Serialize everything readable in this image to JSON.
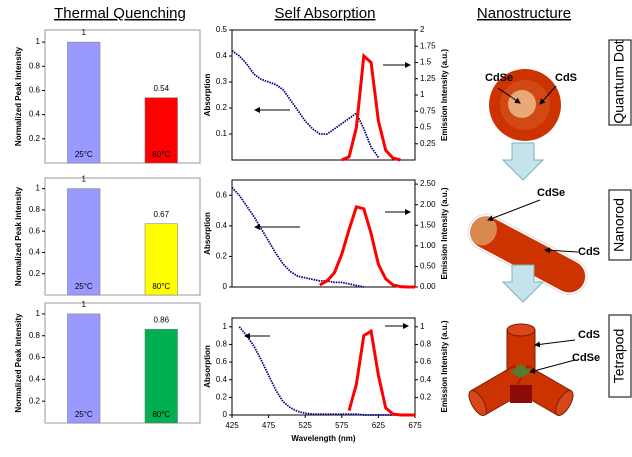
{
  "headers": [
    "Thermal Quenching",
    "Self Absorption",
    "Nanostructure"
  ],
  "nanostructure": [
    {
      "name": "Quantum Dot",
      "labels": [
        "CdSe",
        "CdS"
      ]
    },
    {
      "name": "Nanorod",
      "labels": [
        "CdSe",
        "CdS"
      ]
    },
    {
      "name": "Tetrapod",
      "labels": [
        "CdS",
        "CdSe"
      ]
    }
  ],
  "chart_data": [
    {
      "type": "bar",
      "ylabel": "Normalized Peak Intensity",
      "categories": [
        "25°C",
        "80°C"
      ],
      "values": [
        1,
        0.54
      ],
      "colors": [
        "#9999ff",
        "#ff0000"
      ],
      "ylim": [
        0,
        1.1
      ],
      "yticks": [
        0.2,
        0.4,
        0.6,
        0.8,
        1
      ]
    },
    {
      "type": "bar",
      "ylabel": "Normalized Peak Intensity",
      "categories": [
        "25°C",
        "80°C"
      ],
      "values": [
        1,
        0.67
      ],
      "colors": [
        "#9999ff",
        "#ffff00"
      ],
      "ylim": [
        0,
        1.1
      ],
      "yticks": [
        0.2,
        0.4,
        0.6,
        0.8,
        1
      ]
    },
    {
      "type": "bar",
      "ylabel": "Normalized Peak Intensity",
      "categories": [
        "25°C",
        "80°C"
      ],
      "values": [
        1,
        0.86
      ],
      "colors": [
        "#9999ff",
        "#00b050"
      ],
      "ylim": [
        0,
        1.1
      ],
      "yticks": [
        0.2,
        0.4,
        0.6,
        0.8,
        1
      ]
    },
    {
      "type": "line",
      "ylabel": "Absorption",
      "y2label": "Emission Intensity (a.u.)",
      "x": [
        425,
        435,
        445,
        455,
        465,
        475,
        485,
        495,
        505,
        515,
        525,
        535,
        545,
        555,
        565,
        575,
        585,
        595,
        605,
        615,
        625,
        635,
        645,
        655,
        665,
        675
      ],
      "xlim": [
        425,
        675
      ],
      "ylim": [
        0,
        0.5
      ],
      "yticks": [
        0.1,
        0.2,
        0.3,
        0.4,
        0.5
      ],
      "y2lim": [
        0,
        2
      ],
      "y2ticks": [
        0.25,
        0.5,
        0.75,
        1,
        1.25,
        1.5,
        1.75,
        2
      ],
      "series": [
        {
          "color": "#000080",
          "values": [
            0.42,
            0.4,
            0.37,
            0.33,
            0.31,
            0.3,
            0.29,
            0.27,
            0.23,
            0.19,
            0.15,
            0.12,
            0.1,
            0.1,
            0.12,
            0.14,
            0.16,
            0.18,
            0.12,
            0.05,
            0.01,
            null,
            null,
            null,
            null,
            null
          ]
        },
        {
          "color": "#ff0000",
          "axis": "y2",
          "values": [
            null,
            null,
            null,
            null,
            null,
            null,
            null,
            null,
            null,
            null,
            null,
            null,
            null,
            null,
            null,
            0,
            0.05,
            0.5,
            1.6,
            1.5,
            0.6,
            0.15,
            0.03,
            0,
            null,
            null
          ]
        }
      ]
    },
    {
      "type": "line",
      "ylabel": "Absorption",
      "y2label": "Emission Intensity (a.u.)",
      "x": [
        425,
        435,
        445,
        455,
        465,
        475,
        485,
        495,
        505,
        515,
        525,
        535,
        545,
        555,
        565,
        575,
        585,
        595,
        605,
        615,
        625,
        635,
        645,
        655,
        665,
        675
      ],
      "xlim": [
        425,
        675
      ],
      "ylim": [
        0,
        0.7
      ],
      "yticks": [
        0,
        0.2,
        0.4,
        0.6
      ],
      "y2lim": [
        0,
        2.6
      ],
      "y2ticks": [
        {
          "value": 0,
          "label": "0.00"
        },
        {
          "value": 0.5,
          "label": "0.50"
        },
        {
          "value": 1,
          "label": "1.00"
        },
        {
          "value": 1.5,
          "label": "1.50"
        },
        {
          "value": 2,
          "label": "2.00"
        },
        {
          "value": 2.5,
          "label": "2.50"
        }
      ],
      "series": [
        {
          "color": "#000080",
          "values": [
            0.65,
            0.6,
            0.53,
            0.46,
            0.38,
            0.3,
            0.22,
            0.15,
            0.1,
            0.07,
            0.06,
            0.05,
            0.04,
            0.04,
            0.03,
            0.03,
            0.02,
            0.01,
            0,
            null,
            null,
            null,
            null,
            null,
            null,
            null
          ]
        },
        {
          "color": "#ff0000",
          "axis": "y2",
          "values": [
            null,
            null,
            null,
            null,
            null,
            null,
            null,
            null,
            null,
            null,
            null,
            null,
            0.05,
            0.15,
            0.35,
            0.8,
            1.4,
            1.95,
            1.9,
            1.3,
            0.55,
            0.2,
            0.05,
            0.01,
            0,
            0
          ]
        }
      ]
    },
    {
      "type": "line",
      "ylabel": "Absorption",
      "y2label": "Emission Intensity (a.u.)",
      "xlabel": "Wavelength (nm)",
      "x": [
        425,
        435,
        445,
        455,
        465,
        475,
        485,
        495,
        505,
        515,
        525,
        535,
        545,
        555,
        565,
        575,
        585,
        595,
        605,
        615,
        625,
        635,
        645,
        655,
        665,
        675
      ],
      "xlim": [
        425,
        675
      ],
      "xticks": [
        425,
        475,
        525,
        575,
        625,
        675
      ],
      "ylim": [
        0,
        1.1
      ],
      "yticks": [
        0,
        0.2,
        0.4,
        0.6,
        0.8,
        1
      ],
      "y2lim": [
        0,
        1.1
      ],
      "y2ticks": [
        0.2,
        0.4,
        0.6,
        0.8,
        1
      ],
      "series": [
        {
          "color": "#000080",
          "values": [
            null,
            1.0,
            0.9,
            0.78,
            0.62,
            0.45,
            0.28,
            0.15,
            0.08,
            0.04,
            0.02,
            0.01,
            0.01,
            0.01,
            0.01,
            0.01,
            0.01,
            0.01,
            0,
            0,
            0,
            0,
            0,
            0,
            0,
            0
          ]
        },
        {
          "color": "#ff0000",
          "axis": "y2",
          "values": [
            null,
            null,
            null,
            null,
            null,
            null,
            null,
            null,
            null,
            null,
            null,
            null,
            null,
            null,
            null,
            null,
            0.05,
            0.35,
            0.9,
            0.95,
            0.45,
            0.08,
            0.01,
            0,
            0,
            0
          ]
        }
      ]
    }
  ]
}
